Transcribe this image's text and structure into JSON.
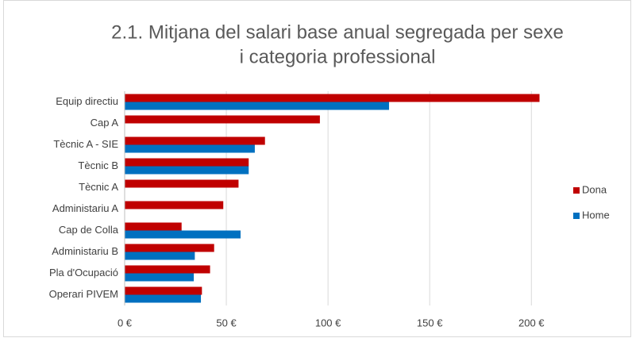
{
  "chart_data": {
    "type": "hbar",
    "title": [
      "2.1. Mitjana del salari base anual segregada per sexe",
      "i categoria professional"
    ],
    "categories": [
      "Equip directiu",
      "Cap A",
      "Tècnic A - SIE",
      "Tècnic B",
      "Tècnic A",
      "Administariu A",
      "Cap de Colla",
      "Administariu B",
      "Pla d'Ocupació",
      "Operari PIVEM"
    ],
    "series": [
      {
        "name": "Dona",
        "color": "#c00000",
        "values": [
          204,
          96,
          69,
          61,
          56,
          48.5,
          28,
          44,
          42,
          38
        ]
      },
      {
        "name": "Home",
        "color": "#0070c0",
        "values": [
          130,
          null,
          64,
          61,
          null,
          null,
          57,
          34.5,
          34,
          37.5
        ]
      }
    ],
    "xlim": [
      0,
      212
    ],
    "xticks": [
      {
        "value": 0,
        "label": "0 €"
      },
      {
        "value": 50,
        "label": "50 €"
      },
      {
        "value": 100,
        "label": "100 €"
      },
      {
        "value": 150,
        "label": "150 €"
      },
      {
        "value": 200,
        "label": "200 €"
      }
    ],
    "grid": true,
    "legend": "right"
  }
}
